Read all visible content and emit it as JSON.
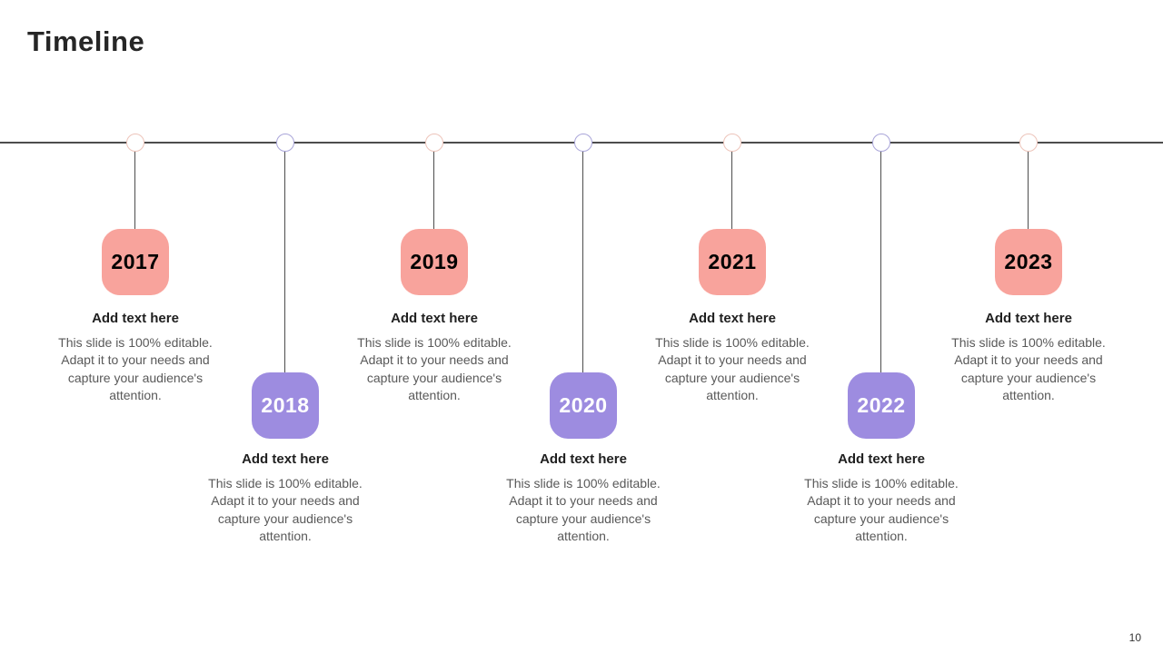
{
  "slide": {
    "title": "Timeline",
    "page_number": "10"
  },
  "colors": {
    "salmon": "#F8A39C",
    "salmon_circle": "#EDC4BA",
    "purple": "#9D8CE0",
    "purple_circle": "#A9A5D9",
    "line": "#4D4D4D",
    "year_text_on_salmon": "#4E3331",
    "year_text_on_purple": "#FFFFFF",
    "heading_text": "#1F1F1F",
    "body_text": "#595959"
  },
  "items": [
    {
      "year": "2017",
      "variant": "salmon",
      "row": "top",
      "heading": "Add text here",
      "body": "This slide is 100% editable. Adapt it to your needs and capture your audience's attention."
    },
    {
      "year": "2018",
      "variant": "purple",
      "row": "bottom",
      "heading": "Add text here",
      "body": "This slide is 100% editable. Adapt it to your needs and capture your audience's attention."
    },
    {
      "year": "2019",
      "variant": "salmon",
      "row": "top",
      "heading": "Add text here",
      "body": "This slide is 100% editable. Adapt it to your needs and capture your audience's attention."
    },
    {
      "year": "2020",
      "variant": "purple",
      "row": "bottom",
      "heading": "Add text here",
      "body": "This slide is 100% editable. Adapt it to your needs and capture your audience's attention."
    },
    {
      "year": "2021",
      "variant": "salmon",
      "row": "top",
      "heading": "Add text here",
      "body": "This slide is 100% editable. Adapt it to your needs and capture your audience's attention."
    },
    {
      "year": "2022",
      "variant": "purple",
      "row": "bottom",
      "heading": "Add text here",
      "body": "This slide is 100% editable. Adapt it to your needs and capture your audience's attention."
    },
    {
      "year": "2023",
      "variant": "salmon",
      "row": "top",
      "heading": "Add text here",
      "body": "This slide is 100% editable. Adapt it to your needs and capture your audience's attention."
    }
  ]
}
